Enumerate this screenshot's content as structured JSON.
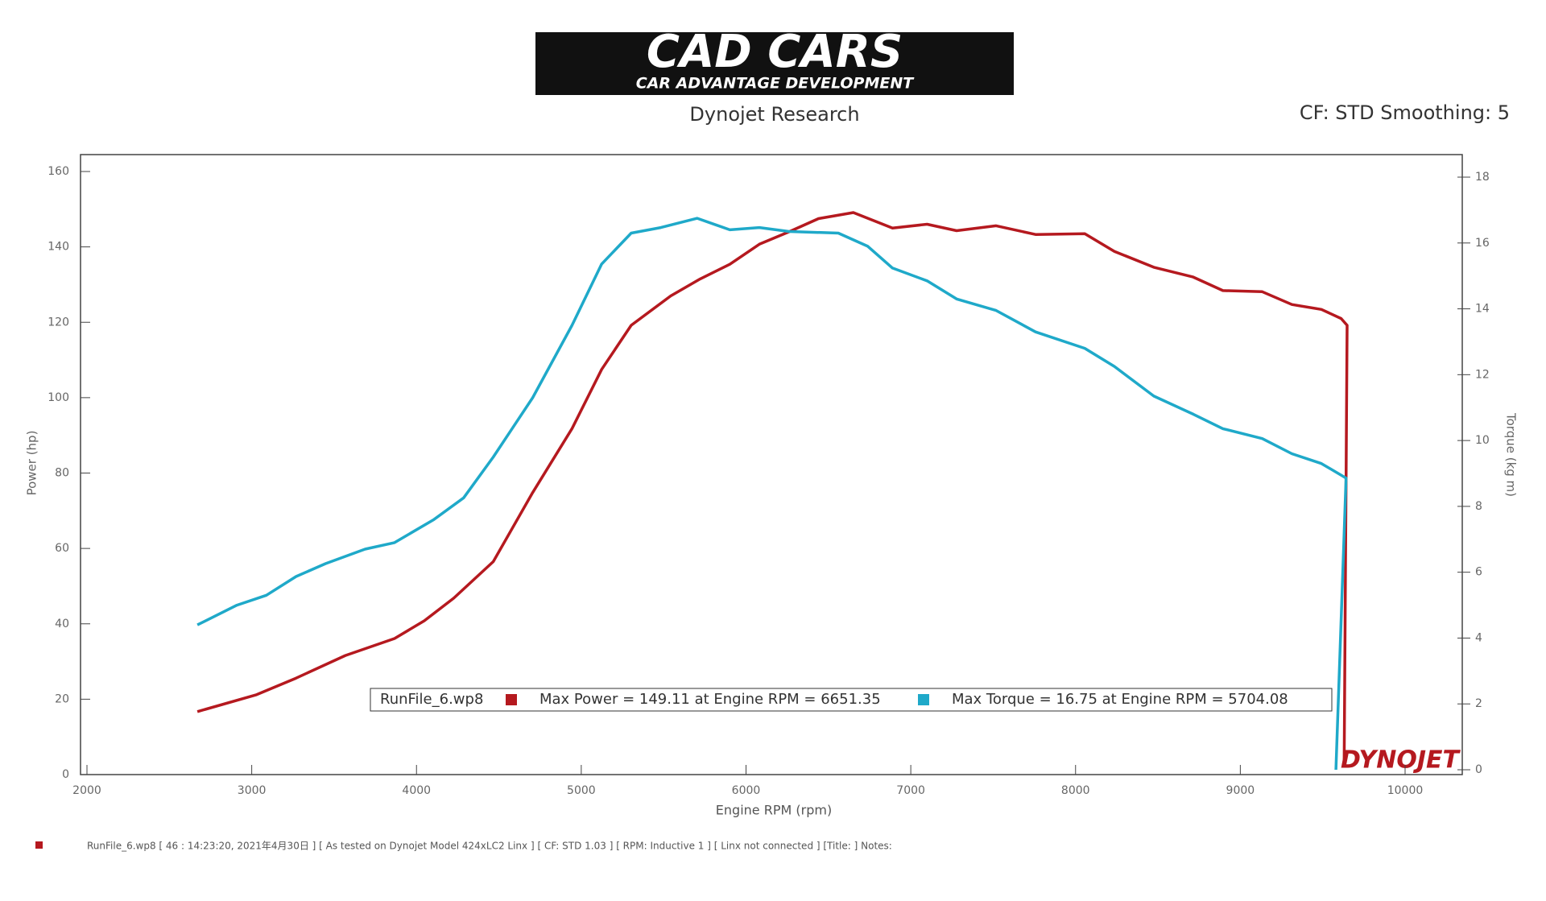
{
  "header": {
    "logo_title": "CAD CARS",
    "logo_subtitle": "CAR ADVANTAGE DEVELOPMENT",
    "subtitle": "Dynojet Research",
    "settings": "CF: STD Smoothing: 5",
    "brand": "DYNOJET"
  },
  "chart_data": {
    "type": "line",
    "x_label": "Engine RPM (rpm)",
    "y_label": "Power (hp)",
    "y2_label": "Torque (kg m)",
    "legend_title": "RunFile_6.wp8",
    "xlim": [
      2000,
      10000
    ],
    "xticks": [
      2000,
      3000,
      4000,
      5000,
      6000,
      7000,
      8000,
      9000,
      10000
    ],
    "ylim": [
      0,
      160
    ],
    "yticks": [
      0,
      20,
      40,
      60,
      80,
      100,
      120,
      140,
      160
    ],
    "y2lim": [
      0,
      18
    ],
    "y2ticks": [
      0,
      2,
      4,
      6,
      8,
      10,
      12,
      14,
      16,
      18
    ],
    "legend": "bottom",
    "series": [
      {
        "name": "Max Power = 149.11 at Engine RPM = 6651.35",
        "color": "#b5191f",
        "axis": "y",
        "x": [
          2670,
          3029,
          3269,
          3568,
          3867,
          4047,
          4226,
          4466,
          4705,
          4944,
          5124,
          5303,
          5543,
          5722,
          5902,
          6081,
          6261,
          6440,
          6651.35,
          6889,
          7099,
          7278,
          7518,
          7757,
          8056,
          8236,
          8475,
          8714,
          8894,
          9133,
          9313,
          9492,
          9612,
          9648,
          9630
        ],
        "values": [
          16.7,
          21.2,
          25.6,
          31.6,
          36.1,
          40.8,
          46.8,
          56.5,
          74.8,
          91.8,
          107.5,
          119.2,
          127,
          131.5,
          135.4,
          140.7,
          144,
          147.5,
          149.11,
          145,
          146,
          144.3,
          145.6,
          143.3,
          143.5,
          138.8,
          134.6,
          132,
          128.4,
          128.1,
          124.7,
          123.4,
          121,
          119.2,
          2
        ]
      },
      {
        "name": "Max Torque = 16.75 at Engine RPM = 5704.08",
        "color": "#1fa9c9",
        "axis": "y2",
        "x": [
          2670,
          2910,
          3089,
          3269,
          3448,
          3688,
          3867,
          4106,
          4286,
          4466,
          4705,
          4944,
          5124,
          5303,
          5483,
          5704.08,
          5902,
          6081,
          6261,
          6560,
          6739,
          6889,
          7099,
          7278,
          7518,
          7757,
          8056,
          8236,
          8475,
          8714,
          8894,
          9133,
          9313,
          9492,
          9642,
          9580
        ],
        "values": [
          4.4,
          5.0,
          5.3,
          5.87,
          6.26,
          6.7,
          6.9,
          7.6,
          8.26,
          9.5,
          11.3,
          13.5,
          15.36,
          16.3,
          16.47,
          16.75,
          16.4,
          16.47,
          16.35,
          16.3,
          15.9,
          15.24,
          14.85,
          14.3,
          13.95,
          13.3,
          12.8,
          12.25,
          11.35,
          10.8,
          10.36,
          10.06,
          9.6,
          9.3,
          8.86,
          0
        ]
      }
    ]
  },
  "footer": {
    "notes": "RunFile_6.wp8 [ 46 : 14:23:20, 2021年4月30日 ] [ As tested on Dynojet Model 424xLC2 Linx ] [ CF: STD 1.03 ] [ RPM: Inductive 1 ] [ Linx not connected ] [Title: ] Notes:"
  }
}
